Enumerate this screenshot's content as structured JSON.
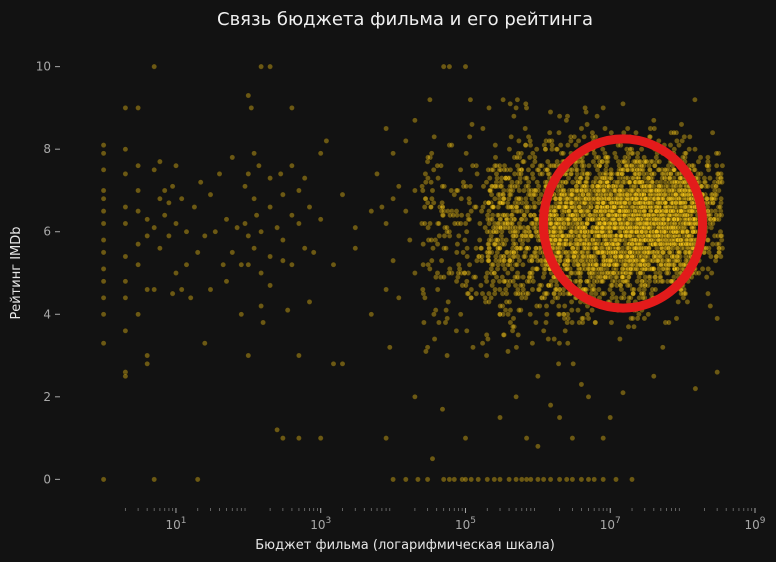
{
  "chart_data": {
    "type": "scatter",
    "title": "Связь бюджета фильма и его рейтинга",
    "xlabel": "Бюджет фильма (логарифмическая шкала)",
    "ylabel": "Рейтинг IMDb",
    "x_scale": "log",
    "xlim": [
      0.25,
      1000000000
    ],
    "ylim": [
      -0.5,
      10.5
    ],
    "x_ticks": [
      {
        "value": 10,
        "base": "10",
        "exp": "1"
      },
      {
        "value": 1000,
        "base": "10",
        "exp": "3"
      },
      {
        "value": 100000,
        "base": "10",
        "exp": "5"
      },
      {
        "value": 10000000,
        "base": "10",
        "exp": "7"
      },
      {
        "value": 1000000000,
        "base": "10",
        "exp": "9"
      }
    ],
    "y_ticks": [
      {
        "value": 0,
        "label": "0"
      },
      {
        "value": 2,
        "label": "2"
      },
      {
        "value": 4,
        "label": "4"
      },
      {
        "value": 6,
        "label": "6"
      },
      {
        "value": 8,
        "label": "8"
      },
      {
        "value": 10,
        "label": "10"
      }
    ],
    "grid": false,
    "legend": "none",
    "point_color": "#F5C518",
    "point_opacity": 0.4,
    "series": [
      {
        "points": [
          [
            1,
            8.1
          ],
          [
            1,
            7.9
          ],
          [
            1,
            7.5
          ],
          [
            1,
            7
          ],
          [
            1,
            6.8
          ],
          [
            1,
            6.5
          ],
          [
            1,
            6.2
          ],
          [
            1,
            5.8
          ],
          [
            1,
            5.5
          ],
          [
            1,
            5.1
          ],
          [
            1,
            4.8
          ],
          [
            1,
            4.4
          ],
          [
            1,
            4
          ],
          [
            1,
            3.3
          ],
          [
            1,
            0
          ],
          [
            2,
            9
          ],
          [
            2,
            8
          ],
          [
            2,
            7.4
          ],
          [
            2,
            6.6
          ],
          [
            2,
            6.2
          ],
          [
            2,
            5.4
          ],
          [
            2,
            4.8
          ],
          [
            2,
            4.4
          ],
          [
            2,
            3.6
          ],
          [
            2,
            2.6
          ],
          [
            2,
            2.5
          ],
          [
            3,
            9
          ],
          [
            3,
            7.6
          ],
          [
            3,
            7
          ],
          [
            3,
            6.5
          ],
          [
            3,
            5.7
          ],
          [
            3,
            5.2
          ],
          [
            3,
            4
          ],
          [
            4,
            6.3
          ],
          [
            4,
            5.9
          ],
          [
            4,
            4.6
          ],
          [
            4,
            3
          ],
          [
            4,
            2.8
          ],
          [
            5,
            10
          ],
          [
            5,
            7.5
          ],
          [
            5,
            6.1
          ],
          [
            5,
            4.6
          ],
          [
            5,
            0
          ],
          [
            6,
            7.7
          ],
          [
            6,
            6.8
          ],
          [
            6,
            5.6
          ],
          [
            7,
            7
          ],
          [
            7,
            6.4
          ],
          [
            8,
            6.7
          ],
          [
            8,
            5.9
          ],
          [
            9,
            7.1
          ],
          [
            9,
            4.5
          ],
          [
            10,
            7.6
          ],
          [
            10,
            6.2
          ],
          [
            10,
            5
          ],
          [
            12,
            6.8
          ],
          [
            12,
            4.6
          ],
          [
            14,
            6
          ],
          [
            14,
            5.2
          ],
          [
            16,
            4.4
          ],
          [
            18,
            6.6
          ],
          [
            20,
            5.5
          ],
          [
            20,
            0
          ],
          [
            22,
            7.2
          ],
          [
            25,
            5.9
          ],
          [
            25,
            3.3
          ],
          [
            30,
            6.9
          ],
          [
            30,
            4.6
          ],
          [
            35,
            6
          ],
          [
            40,
            7.4
          ],
          [
            45,
            5.2
          ],
          [
            50,
            6.3
          ],
          [
            50,
            4.8
          ],
          [
            60,
            7.8
          ],
          [
            60,
            5.5
          ],
          [
            70,
            6.1
          ],
          [
            80,
            5.2
          ],
          [
            80,
            4
          ],
          [
            90,
            7.1
          ],
          [
            90,
            6.2
          ],
          [
            100,
            9.3
          ],
          [
            100,
            7.4
          ],
          [
            100,
            5.9
          ],
          [
            100,
            5.2
          ],
          [
            100,
            3
          ],
          [
            110,
            9
          ],
          [
            120,
            7.9
          ],
          [
            120,
            6.8
          ],
          [
            120,
            5.6
          ],
          [
            130,
            6.4
          ],
          [
            140,
            7.6
          ],
          [
            150,
            6
          ],
          [
            150,
            5
          ],
          [
            150,
            4.2
          ],
          [
            150,
            10
          ],
          [
            160,
            3.8
          ],
          [
            200,
            10
          ],
          [
            200,
            7.3
          ],
          [
            200,
            6.6
          ],
          [
            200,
            5.4
          ],
          [
            200,
            4.7
          ],
          [
            250,
            6.1
          ],
          [
            250,
            1.2
          ],
          [
            280,
            7.4
          ],
          [
            300,
            6.9
          ],
          [
            300,
            5.8
          ],
          [
            300,
            5.3
          ],
          [
            300,
            1
          ],
          [
            350,
            4.1
          ],
          [
            400,
            9
          ],
          [
            400,
            7.6
          ],
          [
            400,
            6.4
          ],
          [
            400,
            5.2
          ],
          [
            500,
            7
          ],
          [
            500,
            6.2
          ],
          [
            500,
            3
          ],
          [
            500,
            1
          ],
          [
            600,
            7.3
          ],
          [
            600,
            5.6
          ],
          [
            700,
            6.6
          ],
          [
            700,
            4.3
          ],
          [
            800,
            5.5
          ],
          [
            1000,
            7.9
          ],
          [
            1000,
            6.3
          ],
          [
            1000,
            1
          ],
          [
            1200,
            8.2
          ],
          [
            1500,
            5.2
          ],
          [
            1500,
            2.8
          ],
          [
            2000,
            6.9
          ],
          [
            2000,
            2.8
          ],
          [
            3000,
            6.1
          ],
          [
            3000,
            5.6
          ],
          [
            5000,
            6.5
          ],
          [
            5000,
            4
          ],
          [
            6000,
            7.4
          ],
          [
            7000,
            6.6
          ],
          [
            8000,
            8.5
          ],
          [
            8000,
            6.2
          ],
          [
            8000,
            4.6
          ],
          [
            8000,
            1
          ],
          [
            9000,
            3.2
          ],
          [
            10000,
            7.9
          ],
          [
            10000,
            6.8
          ],
          [
            10000,
            5.3
          ],
          [
            10000,
            0
          ],
          [
            12000,
            7.1
          ],
          [
            12000,
            4.4
          ],
          [
            15000,
            8.2
          ],
          [
            15000,
            6.5
          ],
          [
            15000,
            0
          ],
          [
            17000,
            5.8
          ],
          [
            20000,
            8.7
          ],
          [
            20000,
            7
          ],
          [
            20000,
            5
          ],
          [
            20000,
            2
          ],
          [
            22000,
            0
          ],
          [
            25000,
            6.2
          ],
          [
            30000,
            7.7
          ],
          [
            30000,
            3.2
          ],
          [
            35000,
            0.5
          ]
        ],
        "clusters": [
          {
            "xlog_range": [
              4.4,
              5.3
            ],
            "y_mean": 5.9,
            "y_sd": 1.3,
            "count": 180
          },
          {
            "xlog_range": [
              5.3,
              6.1
            ],
            "y_mean": 6.1,
            "y_sd": 1.15,
            "count": 520
          },
          {
            "xlog_range": [
              6.1,
              6.8
            ],
            "y_mean": 6.1,
            "y_sd": 1.0,
            "count": 900
          },
          {
            "xlog_range": [
              6.8,
              7.6
            ],
            "y_mean": 6.2,
            "y_sd": 0.85,
            "count": 1400
          },
          {
            "xlog_range": [
              7.6,
              8.2
            ],
            "y_mean": 6.3,
            "y_sd": 0.8,
            "count": 900
          },
          {
            "xlog_range": [
              8.2,
              8.55
            ],
            "y_mean": 6.4,
            "y_sd": 0.7,
            "count": 160
          }
        ],
        "zero_rating_points": [
          [
            30000,
            0
          ],
          [
            50000,
            0
          ],
          [
            60000,
            0
          ],
          [
            70000,
            0
          ],
          [
            90000,
            0
          ],
          [
            100000,
            0
          ],
          [
            120000,
            0
          ],
          [
            150000,
            0
          ],
          [
            200000,
            0
          ],
          [
            250000,
            0
          ],
          [
            300000,
            0
          ],
          [
            400000,
            0
          ],
          [
            500000,
            0
          ],
          [
            600000,
            0
          ],
          [
            700000,
            0
          ],
          [
            800000,
            0
          ],
          [
            1000000,
            0
          ],
          [
            1200000,
            0
          ],
          [
            1500000,
            0
          ],
          [
            2000000,
            0
          ],
          [
            2500000,
            0
          ],
          [
            3000000,
            0
          ],
          [
            4000000,
            0
          ],
          [
            5000000,
            0
          ],
          [
            6000000,
            0
          ],
          [
            8000000,
            0
          ],
          [
            12000000,
            0
          ],
          [
            20000000,
            0
          ]
        ],
        "low_rating_points": [
          [
            50000,
            10
          ],
          [
            60000,
            10
          ],
          [
            100000,
            10
          ],
          [
            100000,
            1
          ],
          [
            300000,
            1.5
          ],
          [
            500000,
            2
          ],
          [
            700000,
            1
          ],
          [
            1000000,
            0.8
          ],
          [
            1000000,
            2.5
          ],
          [
            1500000,
            1.8
          ],
          [
            2000000,
            1.5
          ],
          [
            3000000,
            1
          ],
          [
            4000000,
            2.3
          ],
          [
            5000000,
            2
          ],
          [
            8000000,
            1
          ],
          [
            10000000,
            1.5
          ],
          [
            15000000,
            2.1
          ],
          [
            40000000,
            2.5
          ],
          [
            150000000,
            2.2
          ],
          [
            300000000,
            2.6
          ],
          [
            500000,
            9
          ],
          [
            2000000,
            8.8
          ],
          [
            8000000,
            9
          ],
          [
            15000000,
            9.1
          ],
          [
            40000000,
            8.7
          ]
        ]
      }
    ],
    "annotations": [
      {
        "shape": "circle",
        "center": [
          15000000,
          6.2
        ],
        "radius_x_decades": 1.1,
        "radius_y": 2.05,
        "color": "#E31B1B"
      }
    ]
  }
}
